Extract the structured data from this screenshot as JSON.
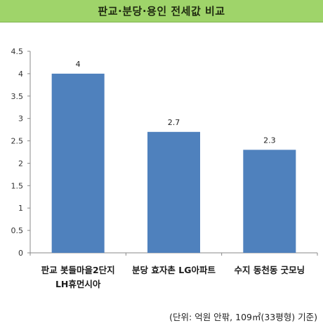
{
  "chart_data": {
    "type": "bar",
    "title": "판교·분당·용인 전세값 비교",
    "categories": [
      [
        "판교 봇들마을2단지",
        "LH휴먼시아"
      ],
      [
        "분당 효자촌 LG아파트"
      ],
      [
        "수지 동천동 굿모닝"
      ]
    ],
    "values": [
      4,
      2.7,
      2.3
    ],
    "data_labels": [
      "4",
      "2.7",
      "2.3"
    ],
    "y_ticks": [
      "0",
      "0.5",
      "1",
      "1.5",
      "2",
      "2.5",
      "3",
      "3.5",
      "4",
      "4.5"
    ],
    "ylim": [
      0,
      4.5
    ],
    "grid": false,
    "legend": "none",
    "bar_color": "#4f81bd",
    "unit_note": "(단위: 억원 안팎, 109㎡(33평형) 기준)"
  },
  "colors": {
    "title_background": "#9fd46a",
    "bar": "#4f81bd",
    "axis": "#888888"
  }
}
